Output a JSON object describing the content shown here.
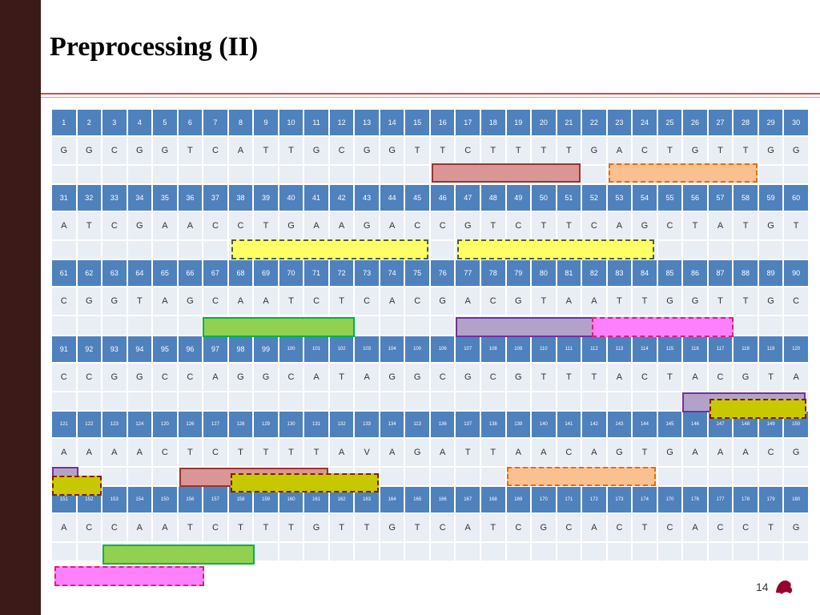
{
  "title": "Preprocessing (II)",
  "page_number": "14",
  "blocks": [
    {
      "numbers": [
        1,
        2,
        3,
        4,
        5,
        6,
        7,
        8,
        9,
        10,
        11,
        12,
        13,
        14,
        15,
        16,
        17,
        18,
        19,
        20,
        21,
        22,
        23,
        24,
        25,
        26,
        27,
        28,
        29,
        30
      ],
      "letters": [
        "G",
        "G",
        "C",
        "G",
        "G",
        "T",
        "C",
        "A",
        "T",
        "T",
        "G",
        "C",
        "G",
        "G",
        "T",
        "T",
        "C",
        "T",
        "T",
        "T",
        "T",
        "G",
        "A",
        "C",
        "T",
        "G",
        "T",
        "T",
        "G",
        "G"
      ]
    },
    {
      "numbers": [
        31,
        32,
        33,
        34,
        35,
        36,
        37,
        38,
        39,
        40,
        41,
        42,
        43,
        44,
        45,
        46,
        47,
        48,
        49,
        50,
        51,
        52,
        53,
        54,
        55,
        56,
        57,
        58,
        59,
        60
      ],
      "letters": [
        "A",
        "T",
        "C",
        "G",
        "A",
        "A",
        "C",
        "C",
        "T",
        "G",
        "A",
        "A",
        "G",
        "A",
        "C",
        "C",
        "G",
        "T",
        "C",
        "T",
        "T",
        "C",
        "A",
        "G",
        "C",
        "T",
        "A",
        "T",
        "G",
        "T"
      ]
    },
    {
      "numbers": [
        61,
        62,
        63,
        64,
        65,
        66,
        67,
        68,
        69,
        70,
        71,
        72,
        73,
        74,
        75,
        76,
        77,
        78,
        79,
        80,
        81,
        82,
        83,
        84,
        85,
        86,
        87,
        88,
        89,
        90
      ],
      "letters": [
        "C",
        "G",
        "G",
        "T",
        "A",
        "G",
        "C",
        "A",
        "A",
        "T",
        "C",
        "T",
        "C",
        "A",
        "C",
        "G",
        "A",
        "C",
        "G",
        "T",
        "A",
        "A",
        "T",
        "T",
        "G",
        "G",
        "T",
        "T",
        "G",
        "C"
      ]
    },
    {
      "numbers": [
        91,
        92,
        93,
        94,
        95,
        96,
        97,
        98,
        99,
        100,
        101,
        102,
        103,
        104,
        100,
        106,
        107,
        108,
        109,
        110,
        111,
        112,
        113,
        114,
        115,
        116,
        117,
        118,
        119,
        120
      ],
      "letters": [
        "C",
        "C",
        "G",
        "G",
        "C",
        "C",
        "A",
        "G",
        "G",
        "C",
        "A",
        "T",
        "A",
        "G",
        "G",
        "C",
        "G",
        "C",
        "G",
        "T",
        "T",
        "T",
        "A",
        "C",
        "T",
        "A",
        "C",
        "G",
        "T",
        "A"
      ]
    },
    {
      "numbers": [
        121,
        122,
        123,
        124,
        120,
        126,
        127,
        128,
        129,
        130,
        131,
        132,
        133,
        134,
        113,
        136,
        137,
        138,
        139,
        140,
        141,
        142,
        143,
        144,
        145,
        146,
        147,
        148,
        149,
        150
      ],
      "letters": [
        "A",
        "A",
        "A",
        "A",
        "C",
        "T",
        "C",
        "T",
        "T",
        "T",
        "T",
        "A",
        "V",
        "A",
        "G",
        "A",
        "T",
        "T",
        "A",
        "A",
        "C",
        "A",
        "G",
        "T",
        "G",
        "A",
        "A",
        "A",
        "C",
        "G"
      ]
    },
    {
      "numbers": [
        151,
        152,
        153,
        154,
        150,
        156,
        157,
        158,
        159,
        160,
        161,
        162,
        163,
        164,
        165,
        166,
        167,
        168,
        169,
        170,
        171,
        172,
        173,
        174,
        170,
        176,
        177,
        178,
        179,
        180
      ],
      "letters": [
        "A",
        "C",
        "C",
        "A",
        "A",
        "T",
        "C",
        "T",
        "T",
        "T",
        "G",
        "T",
        "T",
        "G",
        "T",
        "C",
        "A",
        "T",
        "C",
        "G",
        "C",
        "A",
        "C",
        "T",
        "C",
        "A",
        "C",
        "C",
        "T",
        "G"
      ]
    }
  ]
}
